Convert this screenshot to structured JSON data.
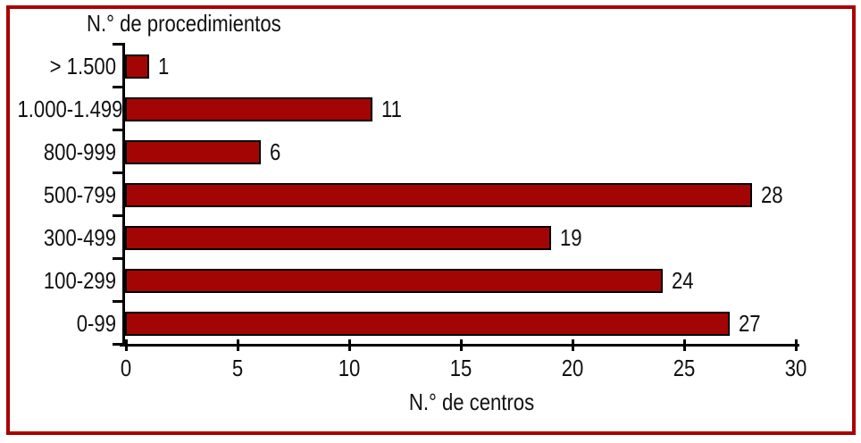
{
  "chart_data": {
    "type": "bar",
    "orientation": "horizontal",
    "title": "N.° de procedimientos",
    "xlabel": "N.° de centros",
    "categories": [
      "> 1.500",
      "1.000-1.499",
      "800-999",
      "500-799",
      "300-499",
      "100-299",
      "0-99"
    ],
    "values": [
      1,
      11,
      6,
      28,
      19,
      24,
      27
    ],
    "value_labels": [
      "1",
      "11",
      "6",
      "28",
      "19",
      "24",
      "27"
    ],
    "x_ticks": [
      0,
      5,
      10,
      15,
      20,
      25,
      30
    ],
    "xlim": [
      0,
      30
    ],
    "grid": false,
    "legend": null,
    "colors": {
      "bar_fill": "#A30505",
      "bar_border": "#000000",
      "frame": "#AA0000",
      "axis": "#000000",
      "text": "#111111",
      "background": "#FFFFFF"
    }
  }
}
